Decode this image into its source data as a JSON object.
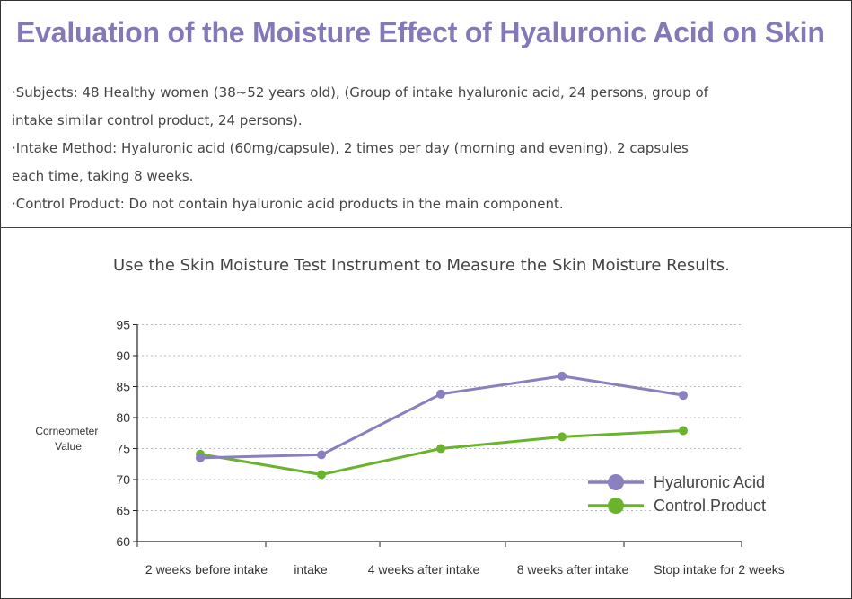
{
  "title": "Evaluation of the Moisture Effect of Hyaluronic Acid on Skin",
  "info": {
    "line1": "·Subjects:  48 Healthy women (38~52 years old), (Group of intake hyaluronic acid,  24 persons, group of",
    "line2": "intake similar control product,  24 persons).",
    "line3": "·Intake Method:  Hyaluronic acid (60mg/capsule),  2 times per day (morning and evening),  2 capsules",
    "line4": "each time,  taking 8 weeks.",
    "line5": "·Control Product:  Do not contain hyaluronic acid products in the main component."
  },
  "chart_subtitle": "Use the Skin Moisture Test Instrument to Measure the Skin Moisture Results.",
  "chart_data": {
    "type": "line",
    "categories": [
      "2 weeks before intake",
      "intake",
      "4 weeks after intake",
      "8 weeks after intake",
      "Stop intake for 2 weeks"
    ],
    "series": [
      {
        "name": "Hyaluronic Acid",
        "values": [
          73.5,
          74.0,
          83.8,
          86.7,
          83.6
        ],
        "color": "#8a7fbf"
      },
      {
        "name": "Control Product",
        "values": [
          74.1,
          70.8,
          75.0,
          76.9,
          77.9
        ],
        "color": "#6ab42c"
      }
    ],
    "ylabel": "Corneometer Value",
    "ylim": [
      60,
      95
    ],
    "yticks": [
      60,
      65,
      70,
      75,
      80,
      85,
      90,
      95
    ],
    "grid": true,
    "legend": "bottom-right"
  }
}
